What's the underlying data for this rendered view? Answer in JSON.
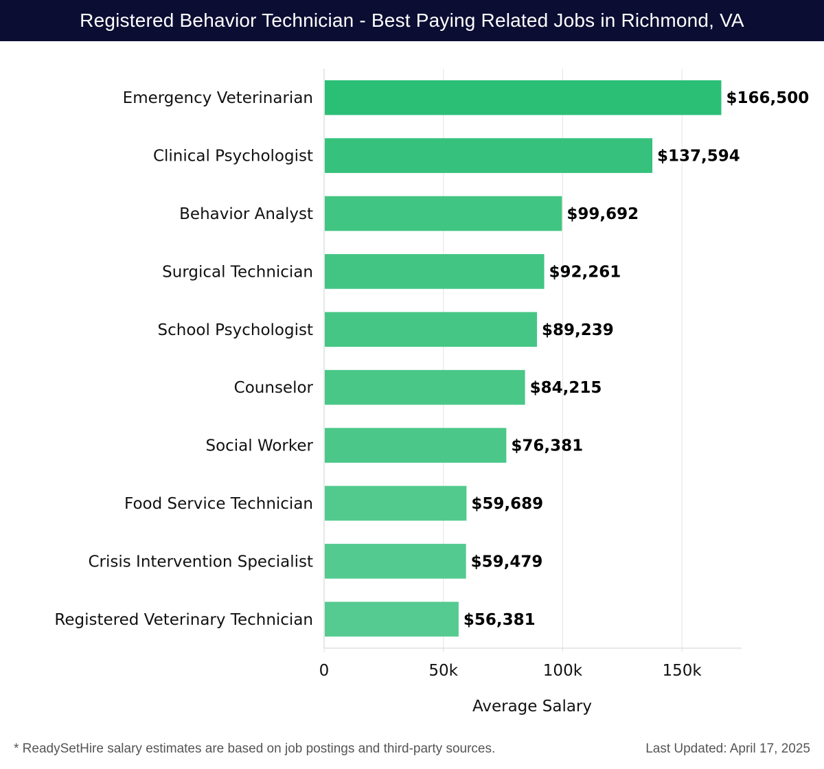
{
  "header": {
    "title": "Registered Behavior Technician - Best Paying Related Jobs in Richmond, VA"
  },
  "chart_data": {
    "type": "bar",
    "orientation": "horizontal",
    "title": "Registered Behavior Technician - Best Paying Related Jobs in Richmond, VA",
    "xlabel": "Average Salary",
    "ylabel": "",
    "xlim": [
      0,
      175000
    ],
    "xticks": [
      0,
      50000,
      100000,
      150000
    ],
    "xtick_labels": [
      "0",
      "50k",
      "100k",
      "150k"
    ],
    "grid": true,
    "categories": [
      "Emergency Veterinarian",
      "Clinical Psychologist",
      "Behavior Analyst",
      "Surgical Technician",
      "School Psychologist",
      "Counselor",
      "Social Worker",
      "Food Service Technician",
      "Crisis Intervention Specialist",
      "Registered Veterinary Technician"
    ],
    "values": [
      166500,
      137594,
      99692,
      92261,
      89239,
      84215,
      76381,
      59689,
      59479,
      56381
    ],
    "value_labels": [
      "$166,500",
      "$137,594",
      "$99,692",
      "$92,261",
      "$89,239",
      "$84,215",
      "$76,381",
      "$59,689",
      "$59,479",
      "$56,381"
    ],
    "bar_colors": [
      "#2bbf76",
      "#36c27c",
      "#41c582",
      "#42c583",
      "#45c685",
      "#48c787",
      "#4bc889",
      "#52ca8e",
      "#53ca8f",
      "#56cb91"
    ]
  },
  "footer": {
    "note": "* ReadySetHire salary estimates are based on job postings and third-party sources.",
    "updated": "Last Updated: April 17, 2025"
  }
}
